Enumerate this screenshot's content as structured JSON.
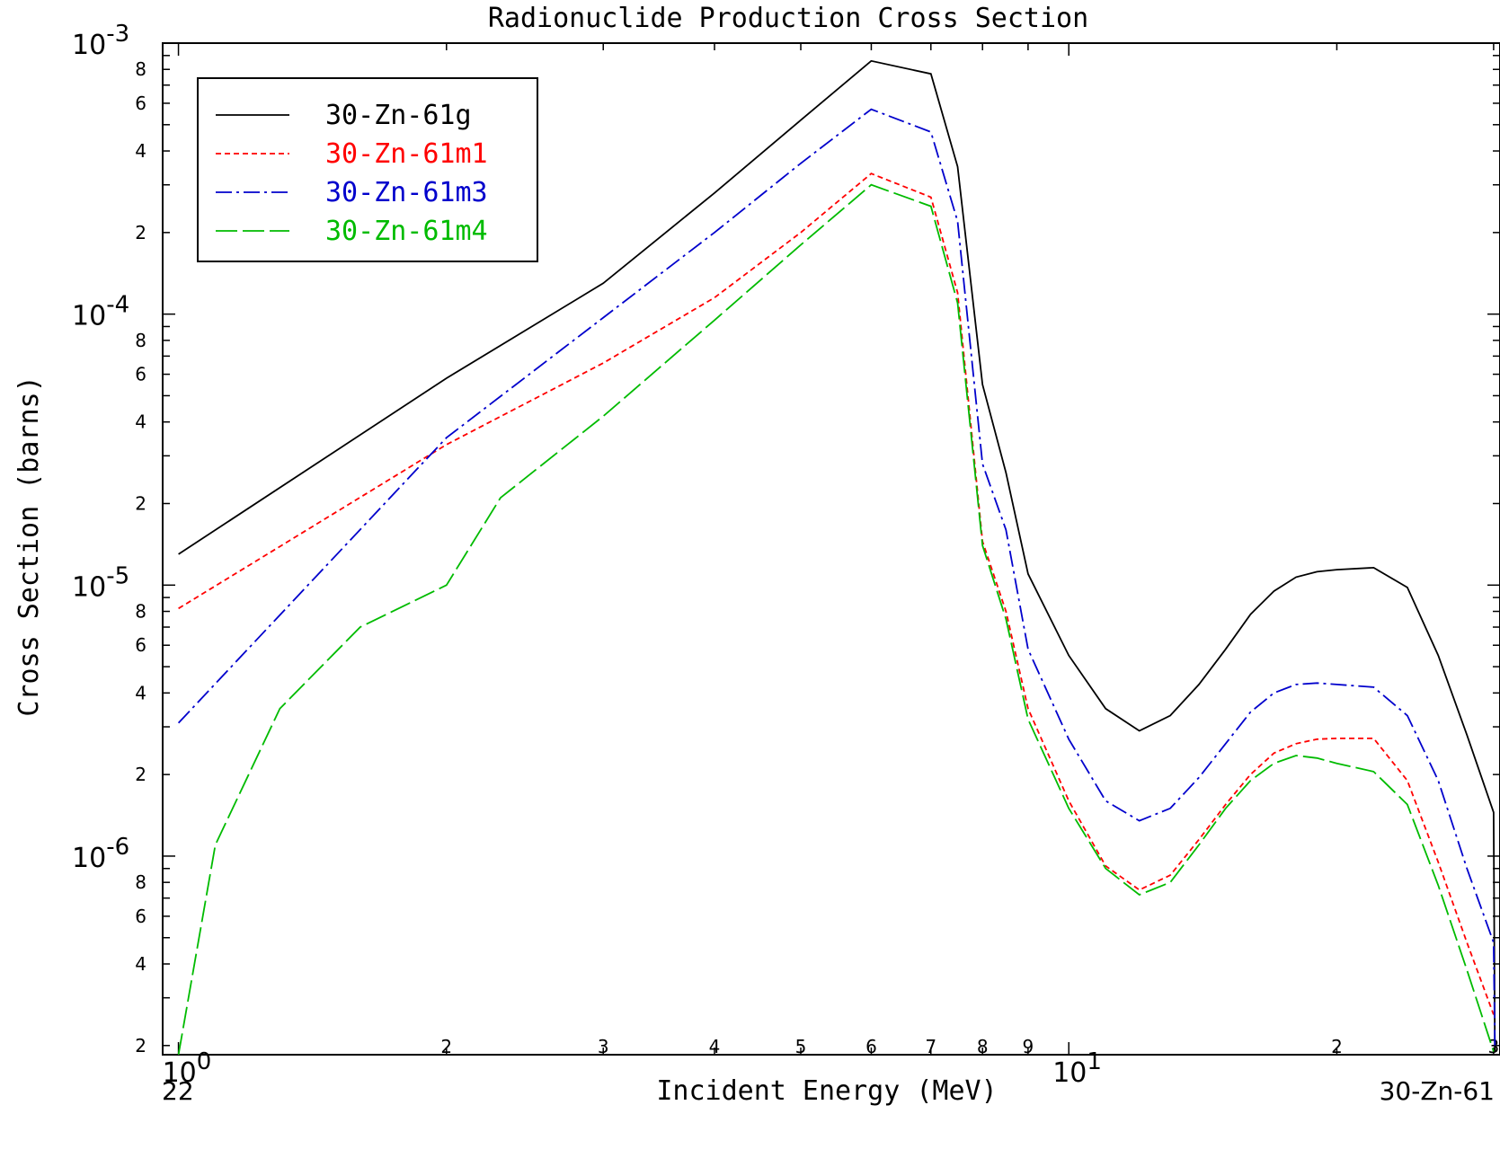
{
  "chart_data": {
    "type": "line",
    "title": "Radionuclide Production Cross Section",
    "xlabel": "Incident Energy (MeV)",
    "ylabel": "Cross Section (barns)",
    "x_scale": "log",
    "y_scale": "log",
    "xlim": [
      0.96,
      30.5
    ],
    "ylim": [
      1.85e-07,
      0.001
    ],
    "bottom_left_label": "22",
    "bottom_right_label": "30-Zn-61",
    "legend_position": "top-left",
    "x_decade_ticks": [
      {
        "base": "10",
        "exp": "0",
        "value": 1
      },
      {
        "base": "10",
        "exp": "1",
        "value": 10
      }
    ],
    "x_minor_tick_labels": [
      {
        "label": "2",
        "value": 2
      },
      {
        "label": "3",
        "value": 3
      },
      {
        "label": "4",
        "value": 4
      },
      {
        "label": "5",
        "value": 5
      },
      {
        "label": "6",
        "value": 6
      },
      {
        "label": "7",
        "value": 7
      },
      {
        "label": "8",
        "value": 8
      },
      {
        "label": "9",
        "value": 9
      },
      {
        "label": "2",
        "value": 20
      },
      {
        "label": "3",
        "value": 30
      }
    ],
    "y_decade_ticks": [
      {
        "base": "10",
        "exp": "-3",
        "value": 0.001
      },
      {
        "base": "10",
        "exp": "-4",
        "value": 0.0001
      },
      {
        "base": "10",
        "exp": "-5",
        "value": 1e-05
      },
      {
        "base": "10",
        "exp": "-6",
        "value": 1e-06
      }
    ],
    "y_minor_tick_labels": [
      {
        "label": "8",
        "value": 0.0008
      },
      {
        "label": "6",
        "value": 0.0006
      },
      {
        "label": "4",
        "value": 0.0004
      },
      {
        "label": "2",
        "value": 0.0002
      },
      {
        "label": "8",
        "value": 8e-05
      },
      {
        "label": "6",
        "value": 6e-05
      },
      {
        "label": "4",
        "value": 4e-05
      },
      {
        "label": "2",
        "value": 2e-05
      },
      {
        "label": "8",
        "value": 8e-06
      },
      {
        "label": "6",
        "value": 6e-06
      },
      {
        "label": "4",
        "value": 4e-06
      },
      {
        "label": "2",
        "value": 2e-06
      },
      {
        "label": "8",
        "value": 8e-07
      },
      {
        "label": "6",
        "value": 6e-07
      },
      {
        "label": "4",
        "value": 4e-07
      },
      {
        "label": "2",
        "value": 2e-07
      }
    ],
    "series": [
      {
        "name": "30-Zn-61g",
        "color": "#000000",
        "dash": "solid",
        "x": [
          1.0,
          2.0,
          3.0,
          4.0,
          5.0,
          6.0,
          7.0,
          7.5,
          8.0,
          8.5,
          9.0,
          10.0,
          11.0,
          12.0,
          13.0,
          14.0,
          15.0,
          16.0,
          17.0,
          18.0,
          19.0,
          20.0,
          22.0,
          24.0,
          26.0,
          28.0,
          30.0,
          30.1
        ],
        "y": [
          1.3e-05,
          5.8e-05,
          0.00013,
          0.00028,
          0.00052,
          0.00086,
          0.00077,
          0.00035,
          5.5e-05,
          2.6e-05,
          1.1e-05,
          5.5e-06,
          3.5e-06,
          2.9e-06,
          3.3e-06,
          4.3e-06,
          5.8e-06,
          7.8e-06,
          9.5e-06,
          1.07e-05,
          1.12e-05,
          1.14e-05,
          1.16e-05,
          9.8e-06,
          5.5e-06,
          2.8e-06,
          1.45e-06,
          1.9e-07
        ]
      },
      {
        "name": "30-Zn-61m1",
        "color": "#ff0000",
        "dash": "6,4",
        "x": [
          1.0,
          2.0,
          3.0,
          4.0,
          5.0,
          6.0,
          7.0,
          7.5,
          8.0,
          8.5,
          9.0,
          10.0,
          11.0,
          12.0,
          13.0,
          14.0,
          15.0,
          16.0,
          17.0,
          18.0,
          19.0,
          20.0,
          22.0,
          24.0,
          26.0,
          28.0,
          30.0
        ],
        "y": [
          8.2e-06,
          3.3e-05,
          6.6e-05,
          0.000115,
          0.0002,
          0.00033,
          0.00027,
          0.00012,
          1.45e-05,
          8e-06,
          3.5e-06,
          1.6e-06,
          9.2e-07,
          7.5e-07,
          8.5e-07,
          1.15e-06,
          1.55e-06,
          2e-06,
          2.4e-06,
          2.6e-06,
          2.7e-06,
          2.72e-06,
          2.72e-06,
          1.9e-06,
          9.5e-07,
          4.8e-07,
          2.6e-07
        ]
      },
      {
        "name": "30-Zn-61m3",
        "color": "#0000cc",
        "dash": "18,5,3,5",
        "x": [
          1.0,
          2.0,
          3.0,
          4.0,
          5.0,
          6.0,
          7.0,
          7.5,
          8.0,
          8.5,
          9.0,
          10.0,
          11.0,
          12.0,
          13.0,
          14.0,
          15.0,
          16.0,
          17.0,
          18.0,
          19.0,
          20.0,
          22.0,
          24.0,
          26.0,
          28.0,
          30.0,
          30.1
        ],
        "y": [
          3.1e-06,
          3.5e-05,
          9.7e-05,
          0.0002,
          0.00036,
          0.00057,
          0.00047,
          0.00022,
          2.8e-05,
          1.6e-05,
          5.8e-06,
          2.7e-06,
          1.6e-06,
          1.35e-06,
          1.5e-06,
          1.95e-06,
          2.6e-06,
          3.4e-06,
          4e-06,
          4.3e-06,
          4.35e-06,
          4.3e-06,
          4.2e-06,
          3.3e-06,
          1.9e-06,
          9e-07,
          4.8e-07,
          2e-07
        ]
      },
      {
        "name": "30-Zn-61m4",
        "color": "#00bb00",
        "dash": "24,6",
        "x": [
          1.0,
          1.1,
          1.3,
          1.6,
          2.0,
          2.3,
          3.0,
          4.0,
          5.0,
          6.0,
          7.0,
          7.5,
          8.0,
          8.5,
          9.0,
          10.0,
          11.0,
          12.0,
          13.0,
          14.0,
          15.0,
          16.0,
          17.0,
          18.0,
          19.0,
          20.0,
          22.0,
          24.0,
          26.0,
          28.0,
          30.0
        ],
        "y": [
          1.85e-07,
          1.1e-06,
          3.5e-06,
          7e-06,
          1e-05,
          2.1e-05,
          4.2e-05,
          9.5e-05,
          0.00018,
          0.0003,
          0.00025,
          0.00011,
          1.4e-05,
          7.5e-06,
          3.2e-06,
          1.5e-06,
          9e-07,
          7.2e-07,
          8e-07,
          1.1e-06,
          1.5e-06,
          1.9e-06,
          2.2e-06,
          2.35e-06,
          2.3e-06,
          2.2e-06,
          2.05e-06,
          1.55e-06,
          7.8e-07,
          3.8e-07,
          1.9e-07
        ]
      }
    ]
  }
}
